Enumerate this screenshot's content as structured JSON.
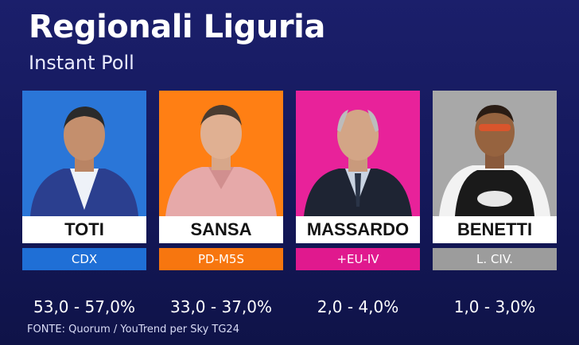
{
  "header": {
    "title": "Regionali Liguria",
    "subtitle": "Instant Poll"
  },
  "candidates": [
    {
      "name": "TOTI",
      "party": "CDX",
      "range": "53,0 - 57,0%",
      "color": "#1f6fd6",
      "bg": "#2a76d8"
    },
    {
      "name": "SANSA",
      "party": "PD-M5S",
      "range": "33,0 - 37,0%",
      "color": "#f7760f",
      "bg": "#ff7f14"
    },
    {
      "name": "MASSARDO",
      "party": "+EU-IV",
      "range": "2,0 - 4,0%",
      "color": "#e0198e",
      "bg": "#e8229a"
    },
    {
      "name": "BENETTI",
      "party": "L. CIV.",
      "range": "1,0 - 3,0%",
      "color": "#9c9c9c",
      "bg": "#a8a8a8"
    }
  ],
  "footer": {
    "source": "FONTE: Quorum / YouTrend per Sky TG24"
  }
}
